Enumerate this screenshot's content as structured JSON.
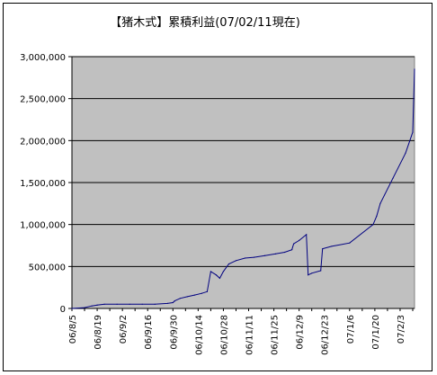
{
  "chart_data": {
    "type": "line",
    "title": "【猪木式】累積利益(07/02/11現在)",
    "xlabel": "",
    "ylabel": "",
    "ylim": [
      0,
      3000000
    ],
    "y_ticks": [
      0,
      500000,
      1000000,
      1500000,
      2000000,
      2500000,
      3000000
    ],
    "y_tick_labels": [
      "0",
      "500,000",
      "1,000,000",
      "1,500,000",
      "2,000,000",
      "2,500,000",
      "3,000,000"
    ],
    "x_tick_labels": [
      "06/8/5",
      "06/8/19",
      "06/9/2",
      "06/9/16",
      "06/9/30",
      "06/10/14",
      "06/10/28",
      "06/11/11",
      "06/11/25",
      "06/12/9",
      "06/12/23",
      "07/1/6",
      "07/1/20",
      "07/2/3"
    ],
    "xlim": [
      "2006-08-05",
      "2007-02-11"
    ],
    "grid": true,
    "plot_background": "#c0c0c0",
    "line_color": "#000080",
    "series": [
      {
        "x": [
          "2006-08-05",
          "2006-08-12",
          "2006-08-16",
          "2006-08-19",
          "2006-08-23",
          "2006-08-30",
          "2006-09-06",
          "2006-09-13",
          "2006-09-20",
          "2006-09-27",
          "2006-09-30",
          "2006-10-01",
          "2006-10-04",
          "2006-10-08",
          "2006-10-12",
          "2006-10-16",
          "2006-10-19",
          "2006-10-21",
          "2006-10-24",
          "2006-10-26",
          "2006-10-28",
          "2006-10-31",
          "2006-11-04",
          "2006-11-09",
          "2006-11-14",
          "2006-11-20",
          "2006-11-26",
          "2006-12-01",
          "2006-12-05",
          "2006-12-06",
          "2006-12-09",
          "2006-12-13",
          "2006-12-14",
          "2006-12-16",
          "2006-12-21",
          "2006-12-22",
          "2006-12-27",
          "2007-01-06",
          "2007-01-19",
          "2007-01-21",
          "2007-01-23",
          "2007-01-30",
          "2007-02-06",
          "2007-02-10",
          "2007-02-11"
        ],
        "values": [
          0,
          10000,
          30000,
          40000,
          50000,
          50000,
          50000,
          50000,
          50000,
          60000,
          70000,
          90000,
          120000,
          140000,
          160000,
          180000,
          200000,
          440000,
          400000,
          360000,
          440000,
          530000,
          570000,
          600000,
          610000,
          630000,
          650000,
          670000,
          700000,
          770000,
          810000,
          880000,
          400000,
          420000,
          450000,
          710000,
          740000,
          780000,
          1000000,
          1100000,
          1250000,
          1550000,
          1850000,
          2100000,
          2850000
        ]
      }
    ]
  }
}
